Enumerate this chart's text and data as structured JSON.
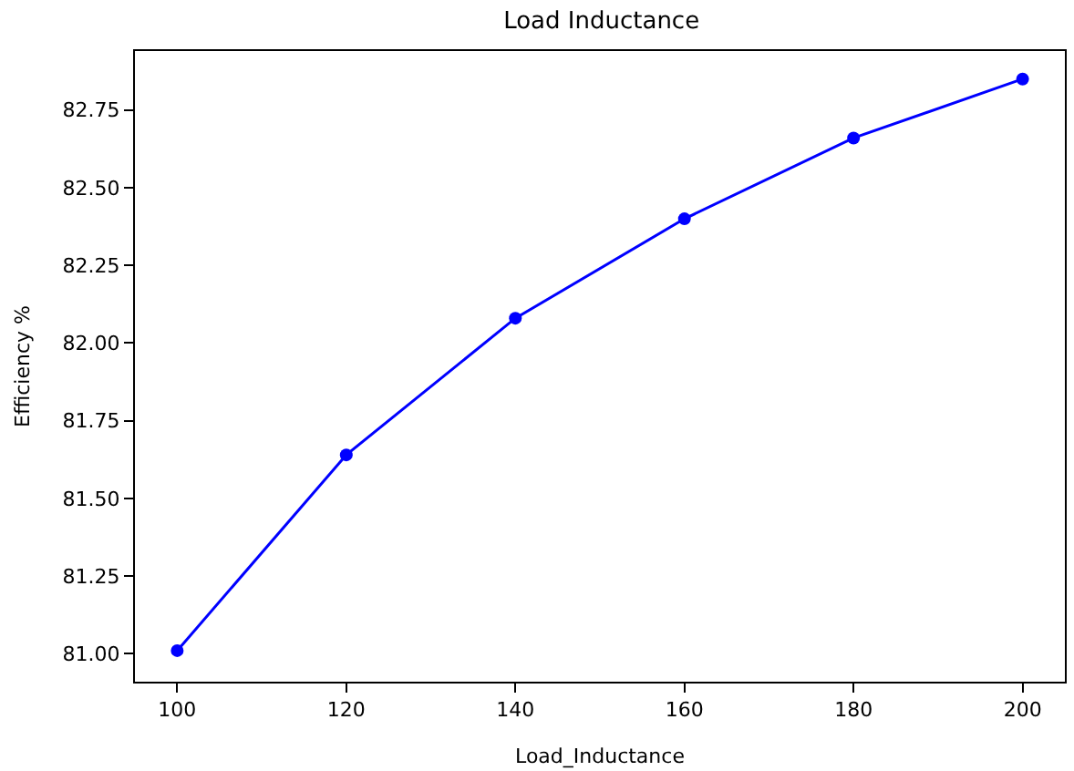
{
  "chart_data": {
    "type": "line",
    "title": "Load Inductance",
    "xlabel": "Load_Inductance",
    "ylabel": "Efficiency %",
    "x": [
      100,
      120,
      140,
      160,
      180,
      200
    ],
    "series": [
      {
        "color": "#0000ff",
        "values": [
          81.01,
          81.64,
          82.08,
          82.4,
          82.66,
          82.85
        ]
      }
    ],
    "xlim": [
      95,
      205
    ],
    "xticks": [
      100,
      120,
      140,
      160,
      180,
      200
    ],
    "ylim": [
      80.91,
      82.94
    ],
    "yticks": [
      {
        "value": 81.0,
        "label": "81.00"
      },
      {
        "value": 81.25,
        "label": "81.25"
      },
      {
        "value": 81.5,
        "label": "81.50"
      },
      {
        "value": 81.75,
        "label": "81.75"
      },
      {
        "value": 82.0,
        "label": "82.00"
      },
      {
        "value": 82.25,
        "label": "82.25"
      },
      {
        "value": 82.5,
        "label": "82.50"
      },
      {
        "value": 82.75,
        "label": "82.75"
      }
    ],
    "marker": "circle",
    "line_style": "solid"
  }
}
